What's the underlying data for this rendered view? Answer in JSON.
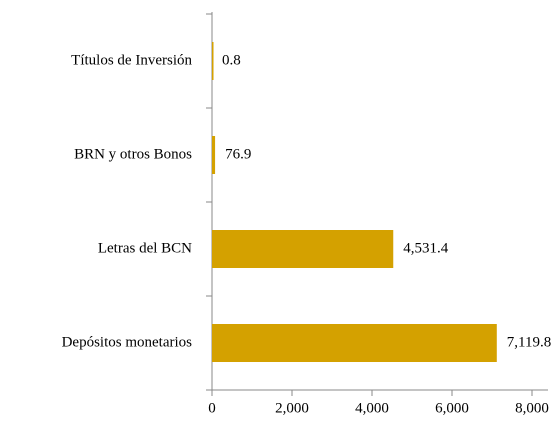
{
  "chart_data": {
    "type": "hbar",
    "categories": [
      "Títulos de Inversión",
      "BRN y otros Bonos",
      "Letras del BCN",
      "Depósitos monetarios"
    ],
    "values": [
      0.8,
      76.9,
      4531.4,
      7119.8
    ],
    "value_labels": [
      "0.8",
      "76.9",
      "4,531.4",
      "7,119.8"
    ],
    "color": "#d4a100",
    "xlim": [
      0,
      8000
    ],
    "xticks": [
      0,
      {
        "value": 2000,
        "label": "2,000"
      },
      {
        "value": 4000,
        "label": "4,000"
      },
      {
        "value": 6000,
        "label": "6,000"
      },
      {
        "value": 8000,
        "label": "8,000"
      }
    ]
  }
}
